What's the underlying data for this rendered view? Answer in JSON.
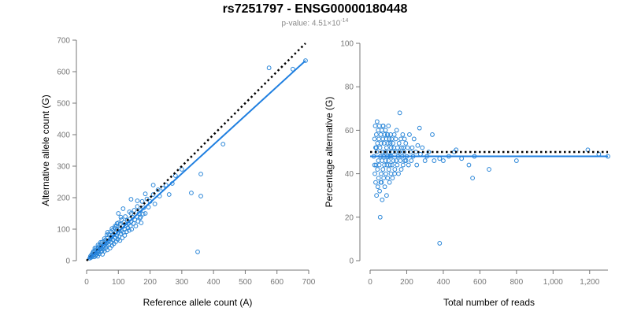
{
  "title": "rs7251797 - ENSG00000180448",
  "pvalue_prefix": "p-value: 4.51×10",
  "pvalue_exponent": "-14",
  "colors": {
    "points": "#2a86d8",
    "fit": "#1f7fe0",
    "reference": "#000000",
    "axis": "#777777"
  },
  "chart_data": [
    {
      "type": "scatter",
      "xlabel": "Reference allele count (A)",
      "ylabel": "Alternative allele count (G)",
      "xlim": [
        0,
        700
      ],
      "ylim": [
        0,
        700
      ],
      "xticks": [
        0,
        100,
        200,
        300,
        400,
        500,
        600,
        700
      ],
      "yticks": [
        0,
        100,
        200,
        300,
        400,
        500,
        600,
        700
      ],
      "xtick_labels": [
        "0",
        "100",
        "200",
        "300",
        "400",
        "500",
        "600",
        "700"
      ],
      "ytick_labels": [
        "0",
        "100",
        "200",
        "300",
        "400",
        "500",
        "600",
        "700"
      ],
      "reference_line": {
        "style": "dotted",
        "from": [
          0,
          0
        ],
        "to": [
          690,
          690
        ]
      },
      "fit_line": {
        "style": "solid",
        "from": [
          5,
          5
        ],
        "to": [
          690,
          635
        ]
      },
      "grid": false,
      "points": [
        [
          10,
          8
        ],
        [
          12,
          14
        ],
        [
          14,
          10
        ],
        [
          15,
          18
        ],
        [
          16,
          12
        ],
        [
          18,
          22
        ],
        [
          20,
          15
        ],
        [
          20,
          26
        ],
        [
          22,
          18
        ],
        [
          22,
          30
        ],
        [
          24,
          12
        ],
        [
          25,
          20
        ],
        [
          26,
          28
        ],
        [
          28,
          16
        ],
        [
          28,
          34
        ],
        [
          30,
          24
        ],
        [
          30,
          40
        ],
        [
          32,
          20
        ],
        [
          33,
          30
        ],
        [
          35,
          38
        ],
        [
          35,
          14
        ],
        [
          36,
          26
        ],
        [
          38,
          42
        ],
        [
          38,
          32
        ],
        [
          40,
          22
        ],
        [
          40,
          48
        ],
        [
          42,
          36
        ],
        [
          44,
          28
        ],
        [
          45,
          52
        ],
        [
          46,
          40
        ],
        [
          48,
          30
        ],
        [
          48,
          58
        ],
        [
          50,
          44
        ],
        [
          50,
          20
        ],
        [
          52,
          36
        ],
        [
          54,
          62
        ],
        [
          55,
          48
        ],
        [
          56,
          30
        ],
        [
          58,
          52
        ],
        [
          60,
          40
        ],
        [
          60,
          66
        ],
        [
          62,
          56
        ],
        [
          64,
          46
        ],
        [
          65,
          34
        ],
        [
          66,
          72
        ],
        [
          68,
          60
        ],
        [
          70,
          50
        ],
        [
          70,
          84
        ],
        [
          72,
          64
        ],
        [
          74,
          40
        ],
        [
          75,
          70
        ],
        [
          76,
          92
        ],
        [
          78,
          58
        ],
        [
          80,
          76
        ],
        [
          80,
          48
        ],
        [
          82,
          96
        ],
        [
          84,
          66
        ],
        [
          85,
          82
        ],
        [
          86,
          54
        ],
        [
          88,
          104
        ],
        [
          90,
          72
        ],
        [
          90,
          88
        ],
        [
          92,
          60
        ],
        [
          94,
          110
        ],
        [
          95,
          80
        ],
        [
          96,
          98
        ],
        [
          98,
          68
        ],
        [
          100,
          90
        ],
        [
          100,
          120
        ],
        [
          102,
          76
        ],
        [
          104,
          100
        ],
        [
          105,
          64
        ],
        [
          106,
          116
        ],
        [
          108,
          86
        ],
        [
          110,
          95
        ],
        [
          110,
          130
        ],
        [
          112,
          72
        ],
        [
          114,
          108
        ],
        [
          116,
          90
        ],
        [
          118,
          122
        ],
        [
          120,
          100
        ],
        [
          120,
          80
        ],
        [
          122,
          140
        ],
        [
          124,
          112
        ],
        [
          126,
          92
        ],
        [
          128,
          128
        ],
        [
          130,
          104
        ],
        [
          132,
          118
        ],
        [
          134,
          96
        ],
        [
          136,
          132
        ],
        [
          138,
          110
        ],
        [
          140,
          150
        ],
        [
          140,
          124
        ],
        [
          142,
          100
        ],
        [
          145,
          138
        ],
        [
          148,
          118
        ],
        [
          150,
          160
        ],
        [
          152,
          130
        ],
        [
          155,
          110
        ],
        [
          158,
          140
        ],
        [
          160,
          172
        ],
        [
          162,
          125
        ],
        [
          165,
          150
        ],
        [
          168,
          135
        ],
        [
          170,
          160
        ],
        [
          172,
          120
        ],
        [
          175,
          188
        ],
        [
          178,
          148
        ],
        [
          180,
          168
        ],
        [
          185,
          150
        ],
        [
          190,
          196
        ],
        [
          195,
          170
        ],
        [
          200,
          188
        ],
        [
          210,
          210
        ],
        [
          215,
          180
        ],
        [
          225,
          225
        ],
        [
          230,
          205
        ],
        [
          240,
          230
        ],
        [
          250,
          240
        ],
        [
          260,
          210
        ],
        [
          270,
          245
        ],
        [
          280,
          270
        ],
        [
          300,
          290
        ],
        [
          330,
          215
        ],
        [
          350,
          28
        ],
        [
          360,
          205
        ],
        [
          360,
          275
        ],
        [
          430,
          370
        ],
        [
          575,
          612
        ],
        [
          650,
          608
        ],
        [
          690,
          635
        ],
        [
          140,
          195
        ],
        [
          160,
          190
        ],
        [
          115,
          165
        ],
        [
          100,
          150
        ],
        [
          210,
          240
        ],
        [
          185,
          212
        ],
        [
          120,
          100
        ],
        [
          135,
          155
        ],
        [
          170,
          138
        ],
        [
          56,
          70
        ],
        [
          64,
          82
        ],
        [
          44,
          58
        ],
        [
          36,
          50
        ],
        [
          26,
          40
        ],
        [
          90,
          110
        ],
        [
          96,
          118
        ],
        [
          80,
          102
        ],
        [
          108,
          138
        ],
        [
          66,
          90
        ]
      ]
    },
    {
      "type": "scatter",
      "xlabel": "Total number of reads",
      "ylabel": "Percentage alternative (G)",
      "xlim": [
        0,
        1300
      ],
      "ylim": [
        0,
        100
      ],
      "xticks": [
        0,
        200,
        400,
        600,
        800,
        1000,
        1200
      ],
      "yticks": [
        0,
        20,
        40,
        60,
        80,
        100
      ],
      "xtick_labels": [
        "0",
        "200",
        "400",
        "600",
        "800",
        "1,000",
        "1,200"
      ],
      "ytick_labels": [
        "0",
        "20",
        "40",
        "60",
        "80",
        "100"
      ],
      "reference_line": {
        "style": "dotted",
        "y": 50
      },
      "fit_line": {
        "style": "solid",
        "y": 48
      },
      "grid": false,
      "points": [
        [
          20,
          48
        ],
        [
          24,
          56
        ],
        [
          26,
          40
        ],
        [
          28,
          62
        ],
        [
          30,
          52
        ],
        [
          30,
          36
        ],
        [
          32,
          44
        ],
        [
          34,
          58
        ],
        [
          35,
          30
        ],
        [
          36,
          50
        ],
        [
          38,
          64
        ],
        [
          40,
          42
        ],
        [
          40,
          54
        ],
        [
          42,
          34
        ],
        [
          44,
          60
        ],
        [
          45,
          46
        ],
        [
          46,
          38
        ],
        [
          48,
          56
        ],
        [
          50,
          62
        ],
        [
          50,
          44
        ],
        [
          52,
          32
        ],
        [
          54,
          52
        ],
        [
          55,
          20
        ],
        [
          56,
          48
        ],
        [
          58,
          58
        ],
        [
          60,
          40
        ],
        [
          60,
          54
        ],
        [
          62,
          36
        ],
        [
          64,
          60
        ],
        [
          65,
          46
        ],
        [
          66,
          28
        ],
        [
          68,
          50
        ],
        [
          70,
          56
        ],
        [
          70,
          42
        ],
        [
          72,
          62
        ],
        [
          74,
          38
        ],
        [
          75,
          48
        ],
        [
          76,
          54
        ],
        [
          78,
          44
        ],
        [
          80,
          58
        ],
        [
          80,
          34
        ],
        [
          82,
          50
        ],
        [
          84,
          60
        ],
        [
          85,
          46
        ],
        [
          86,
          40
        ],
        [
          88,
          56
        ],
        [
          90,
          52
        ],
        [
          90,
          30
        ],
        [
          92,
          44
        ],
        [
          94,
          58
        ],
        [
          95,
          48
        ],
        [
          96,
          38
        ],
        [
          98,
          54
        ],
        [
          100,
          46
        ],
        [
          100,
          62
        ],
        [
          102,
          42
        ],
        [
          104,
          50
        ],
        [
          105,
          56
        ],
        [
          106,
          36
        ],
        [
          108,
          48
        ],
        [
          110,
          54
        ],
        [
          110,
          44
        ],
        [
          112,
          58
        ],
        [
          114,
          40
        ],
        [
          115,
          52
        ],
        [
          116,
          48
        ],
        [
          118,
          56
        ],
        [
          120,
          44
        ],
        [
          120,
          50
        ],
        [
          122,
          38
        ],
        [
          125,
          54
        ],
        [
          128,
          46
        ],
        [
          130,
          52
        ],
        [
          132,
          58
        ],
        [
          135,
          42
        ],
        [
          138,
          50
        ],
        [
          140,
          56
        ],
        [
          142,
          46
        ],
        [
          145,
          60
        ],
        [
          148,
          44
        ],
        [
          150,
          52
        ],
        [
          152,
          48
        ],
        [
          155,
          40
        ],
        [
          158,
          54
        ],
        [
          160,
          50
        ],
        [
          162,
          68
        ],
        [
          165,
          46
        ],
        [
          168,
          56
        ],
        [
          170,
          42
        ],
        [
          172,
          52
        ],
        [
          175,
          48
        ],
        [
          178,
          58
        ],
        [
          180,
          44
        ],
        [
          182,
          52
        ],
        [
          185,
          50
        ],
        [
          188,
          56
        ],
        [
          190,
          46
        ],
        [
          195,
          54
        ],
        [
          200,
          48
        ],
        [
          205,
          52
        ],
        [
          210,
          44
        ],
        [
          215,
          58
        ],
        [
          220,
          50
        ],
        [
          225,
          46
        ],
        [
          230,
          52
        ],
        [
          235,
          48
        ],
        [
          240,
          56
        ],
        [
          250,
          50
        ],
        [
          255,
          44
        ],
        [
          260,
          53
        ],
        [
          270,
          61
        ],
        [
          275,
          49
        ],
        [
          285,
          52
        ],
        [
          300,
          46
        ],
        [
          310,
          48
        ],
        [
          320,
          50
        ],
        [
          340,
          58
        ],
        [
          350,
          46
        ],
        [
          380,
          8
        ],
        [
          380,
          47
        ],
        [
          400,
          46
        ],
        [
          430,
          48
        ],
        [
          460,
          50
        ],
        [
          470,
          51
        ],
        [
          500,
          47
        ],
        [
          540,
          44
        ],
        [
          560,
          38
        ],
        [
          570,
          48
        ],
        [
          650,
          42
        ],
        [
          800,
          46
        ],
        [
          1190,
          51
        ],
        [
          1250,
          49
        ],
        [
          1300,
          48
        ],
        [
          24,
          44
        ],
        [
          34,
          52
        ],
        [
          58,
          36
        ],
        [
          70,
          62
        ],
        [
          96,
          58
        ],
        [
          134,
          40
        ],
        [
          196,
          46
        ]
      ]
    }
  ]
}
